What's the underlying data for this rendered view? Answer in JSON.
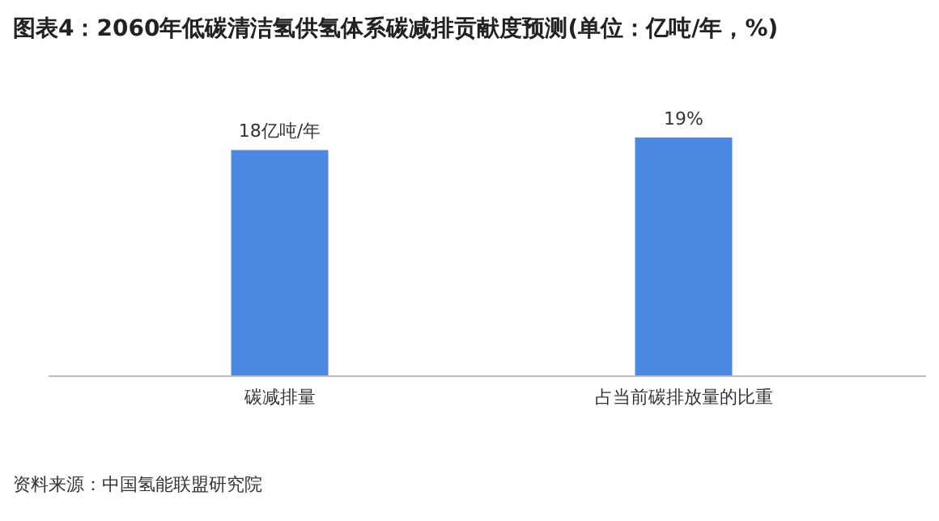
{
  "chart_data": {
    "type": "bar",
    "title": "图表4：2060年低碳清洁氢供氢体系碳减排贡献度预测(单位：亿吨/年，%)",
    "categories": [
      "碳减排量",
      "占当前碳排放量的比重"
    ],
    "values": [
      18,
      19
    ],
    "value_labels": [
      "18亿吨/年",
      "19%"
    ],
    "color": "#4a88e2",
    "annotations": [
      "资料来源：中国氢能联盟研究院"
    ]
  }
}
